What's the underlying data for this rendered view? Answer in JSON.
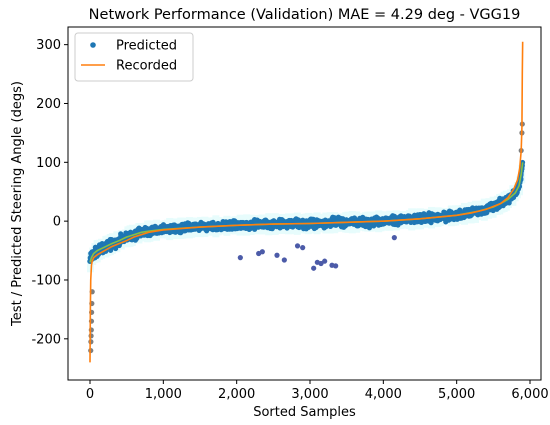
{
  "chart_data": {
    "type": "scatter",
    "title": "Network Performance (Validation)  MAE = 4.29 deg - VGG19",
    "xlabel": "Sorted Samples",
    "ylabel": "Test / Predicted Steering Angle (degs)",
    "xlim": [
      -300,
      6150
    ],
    "ylim": [
      -270,
      330
    ],
    "xticks": [
      0,
      1000,
      2000,
      3000,
      4000,
      5000,
      6000
    ],
    "xtick_labels": [
      "0",
      "1,000",
      "2,000",
      "3,000",
      "4,000",
      "5,000",
      "6,000"
    ],
    "yticks": [
      -200,
      -100,
      0,
      100,
      200,
      300
    ],
    "ytick_labels": [
      "-200",
      "-100",
      "0",
      "100",
      "200",
      "300"
    ],
    "grid": false,
    "legend_position": "top-left",
    "n_samples": 5900,
    "series": [
      {
        "name": "Predicted",
        "kind": "scatter",
        "color": "#1f77b4",
        "trend_x": [
          0,
          20,
          50,
          100,
          200,
          300,
          400,
          500,
          700,
          800,
          1000,
          1500,
          2000,
          2500,
          3000,
          3500,
          4000,
          4500,
          5000,
          5300,
          5500,
          5600,
          5700,
          5800,
          5850,
          5880,
          5900
        ],
        "trend_y": [
          -70,
          -62,
          -55,
          -50,
          -44,
          -38,
          -33,
          -27,
          -19,
          -17,
          -14,
          -10,
          -7,
          -5,
          -4,
          -2,
          0,
          4,
          10,
          17,
          24,
          30,
          37,
          48,
          60,
          80,
          100
        ],
        "outliers_x": [
          10,
          12,
          15,
          18,
          20,
          22,
          25,
          30,
          2050,
          2300,
          2350,
          2550,
          2650,
          2830,
          2900,
          3050,
          3100,
          3150,
          3200,
          3300,
          3350,
          4150,
          5880,
          5890,
          5895
        ],
        "outliers_y": [
          -220,
          -205,
          -195,
          -185,
          -170,
          -155,
          -140,
          -120,
          -62,
          -55,
          -52,
          -58,
          -66,
          -42,
          -45,
          -80,
          -70,
          -72,
          -68,
          -75,
          -76,
          -28,
          120,
          150,
          165
        ]
      },
      {
        "name": "Recorded",
        "kind": "line",
        "color": "#ff7f0e",
        "x": [
          0,
          5,
          10,
          20,
          30,
          50,
          100,
          200,
          300,
          400,
          500,
          600,
          800,
          1000,
          1500,
          2000,
          2500,
          3000,
          3500,
          4000,
          4500,
          5000,
          5200,
          5400,
          5600,
          5700,
          5780,
          5830,
          5860,
          5880,
          5890,
          5895,
          5900
        ],
        "y": [
          -240,
          -150,
          -100,
          -75,
          -68,
          -62,
          -57,
          -50,
          -43,
          -38,
          -33,
          -27,
          -19,
          -15,
          -10,
          -7,
          -5,
          -4,
          -2,
          0,
          4,
          10,
          14,
          20,
          30,
          40,
          55,
          70,
          90,
          120,
          160,
          250,
          305
        ]
      }
    ]
  }
}
